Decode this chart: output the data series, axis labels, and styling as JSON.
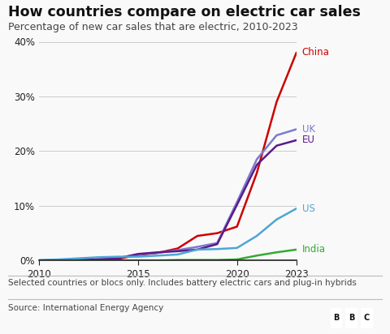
{
  "title": "How countries compare on electric car sales",
  "subtitle": "Percentage of new car sales that are electric, 2010-2023",
  "footnote": "Selected countries or blocs only. Includes battery electric cars and plug-in hybrids",
  "source": "Source: International Energy Agency",
  "years": [
    2010,
    2011,
    2012,
    2013,
    2014,
    2015,
    2016,
    2017,
    2018,
    2019,
    2020,
    2021,
    2022,
    2023
  ],
  "series": {
    "China": {
      "color": "#cc0000",
      "values": [
        0.0,
        0.0,
        0.1,
        0.2,
        0.3,
        1.0,
        1.4,
        2.2,
        4.5,
        5.0,
        6.2,
        16.0,
        29.0,
        38.0
      ]
    },
    "UK": {
      "color": "#7b7bcc",
      "values": [
        0.0,
        0.1,
        0.1,
        0.2,
        0.5,
        1.1,
        1.4,
        1.9,
        2.5,
        3.2,
        10.7,
        18.5,
        22.9,
        24.0
      ]
    },
    "EU": {
      "color": "#5a1a8b",
      "values": [
        0.0,
        0.05,
        0.1,
        0.2,
        0.4,
        1.2,
        1.5,
        1.7,
        2.0,
        3.0,
        10.2,
        17.5,
        21.0,
        22.0
      ]
    },
    "US": {
      "color": "#4da6d4",
      "values": [
        0.1,
        0.2,
        0.4,
        0.6,
        0.7,
        0.7,
        0.9,
        1.1,
        2.0,
        2.1,
        2.3,
        4.5,
        7.5,
        9.5
      ]
    },
    "India": {
      "color": "#33aa33",
      "values": [
        0.0,
        0.0,
        0.0,
        0.0,
        0.0,
        0.0,
        0.0,
        0.1,
        0.1,
        0.1,
        0.2,
        0.9,
        1.5,
        2.0
      ]
    }
  },
  "ylim": [
    0,
    40
  ],
  "yticks": [
    0,
    10,
    20,
    30,
    40
  ],
  "xlim": [
    2010,
    2023
  ],
  "xticks": [
    2010,
    2015,
    2020,
    2023
  ],
  "background_color": "#f9f9f9",
  "plot_bg_color": "#f9f9f9",
  "grid_color": "#cccccc",
  "axis_color": "#222222",
  "title_fontsize": 12.5,
  "subtitle_fontsize": 9.0,
  "label_fontsize": 8.5,
  "tick_fontsize": 8.5,
  "footnote_fontsize": 7.5,
  "source_fontsize": 7.5,
  "line_width": 1.8
}
